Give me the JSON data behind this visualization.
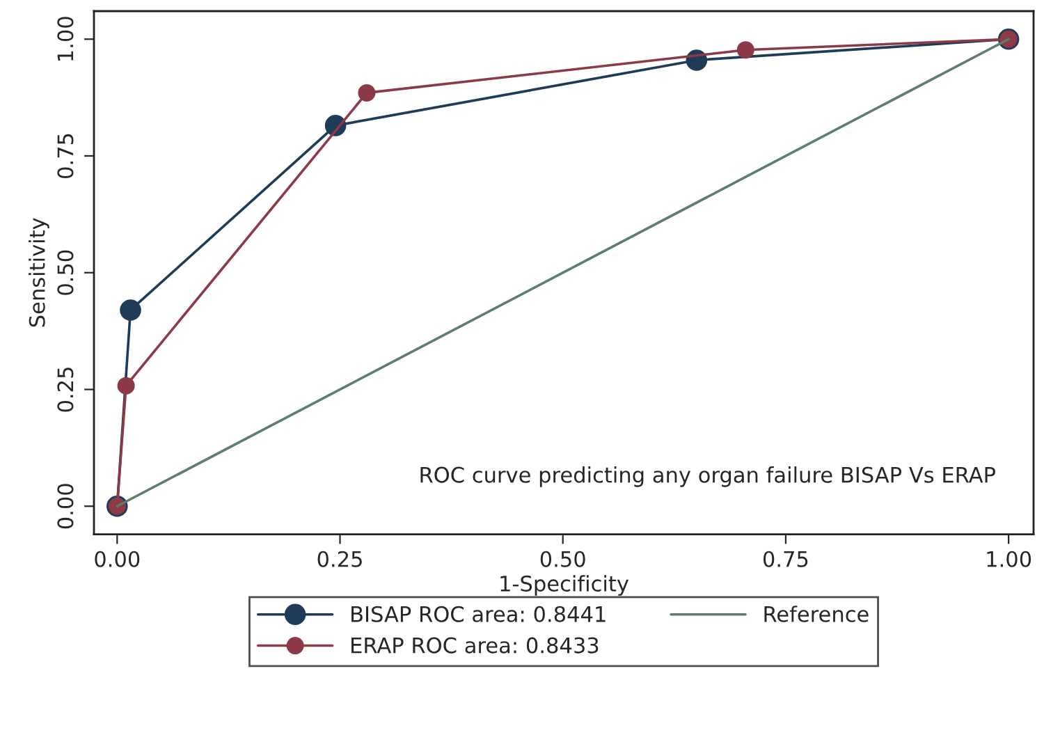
{
  "chart_data": {
    "type": "line",
    "xlabel": "1-Specificity",
    "ylabel": "Sensitivity",
    "annotations": [
      "ROC curve predicting any organ failure BISAP Vs ERAP"
    ],
    "series": [
      {
        "name": "BISAP ROC area: 0.8441",
        "color": "#1f3b57",
        "marker": "circle",
        "x": [
          0,
          0.015,
          0.245,
          0.65,
          1
        ],
        "values": [
          0,
          0.42,
          0.815,
          0.955,
          1
        ]
      },
      {
        "name": "ERAP ROC area: 0.8433",
        "color": "#8c3a48",
        "marker": "circle",
        "x": [
          0,
          0.01,
          0.28,
          0.705,
          1
        ],
        "values": [
          0,
          0.258,
          0.885,
          0.977,
          1
        ]
      },
      {
        "name": "Reference",
        "color": "#5e7d70",
        "marker": "none",
        "x": [
          0,
          1
        ],
        "values": [
          0,
          1
        ]
      }
    ],
    "xlim": [
      -0.026,
      1.028
    ],
    "ylim": [
      -0.06,
      1.06
    ],
    "xticks": [
      {
        "value": 0,
        "label": "0.00"
      },
      {
        "value": 0.25,
        "label": "0.25"
      },
      {
        "value": 0.5,
        "label": "0.50"
      },
      {
        "value": 0.75,
        "label": "0.75"
      },
      {
        "value": 1,
        "label": "1.00"
      }
    ],
    "yticks": [
      {
        "value": 0,
        "label": "0.00"
      },
      {
        "value": 0.25,
        "label": "0.25"
      },
      {
        "value": 0.5,
        "label": "0.50"
      },
      {
        "value": 0.75,
        "label": "0.75"
      },
      {
        "value": 1,
        "label": "1.00"
      }
    ],
    "grid": false,
    "legend": "bottom",
    "line_style": "solid"
  }
}
